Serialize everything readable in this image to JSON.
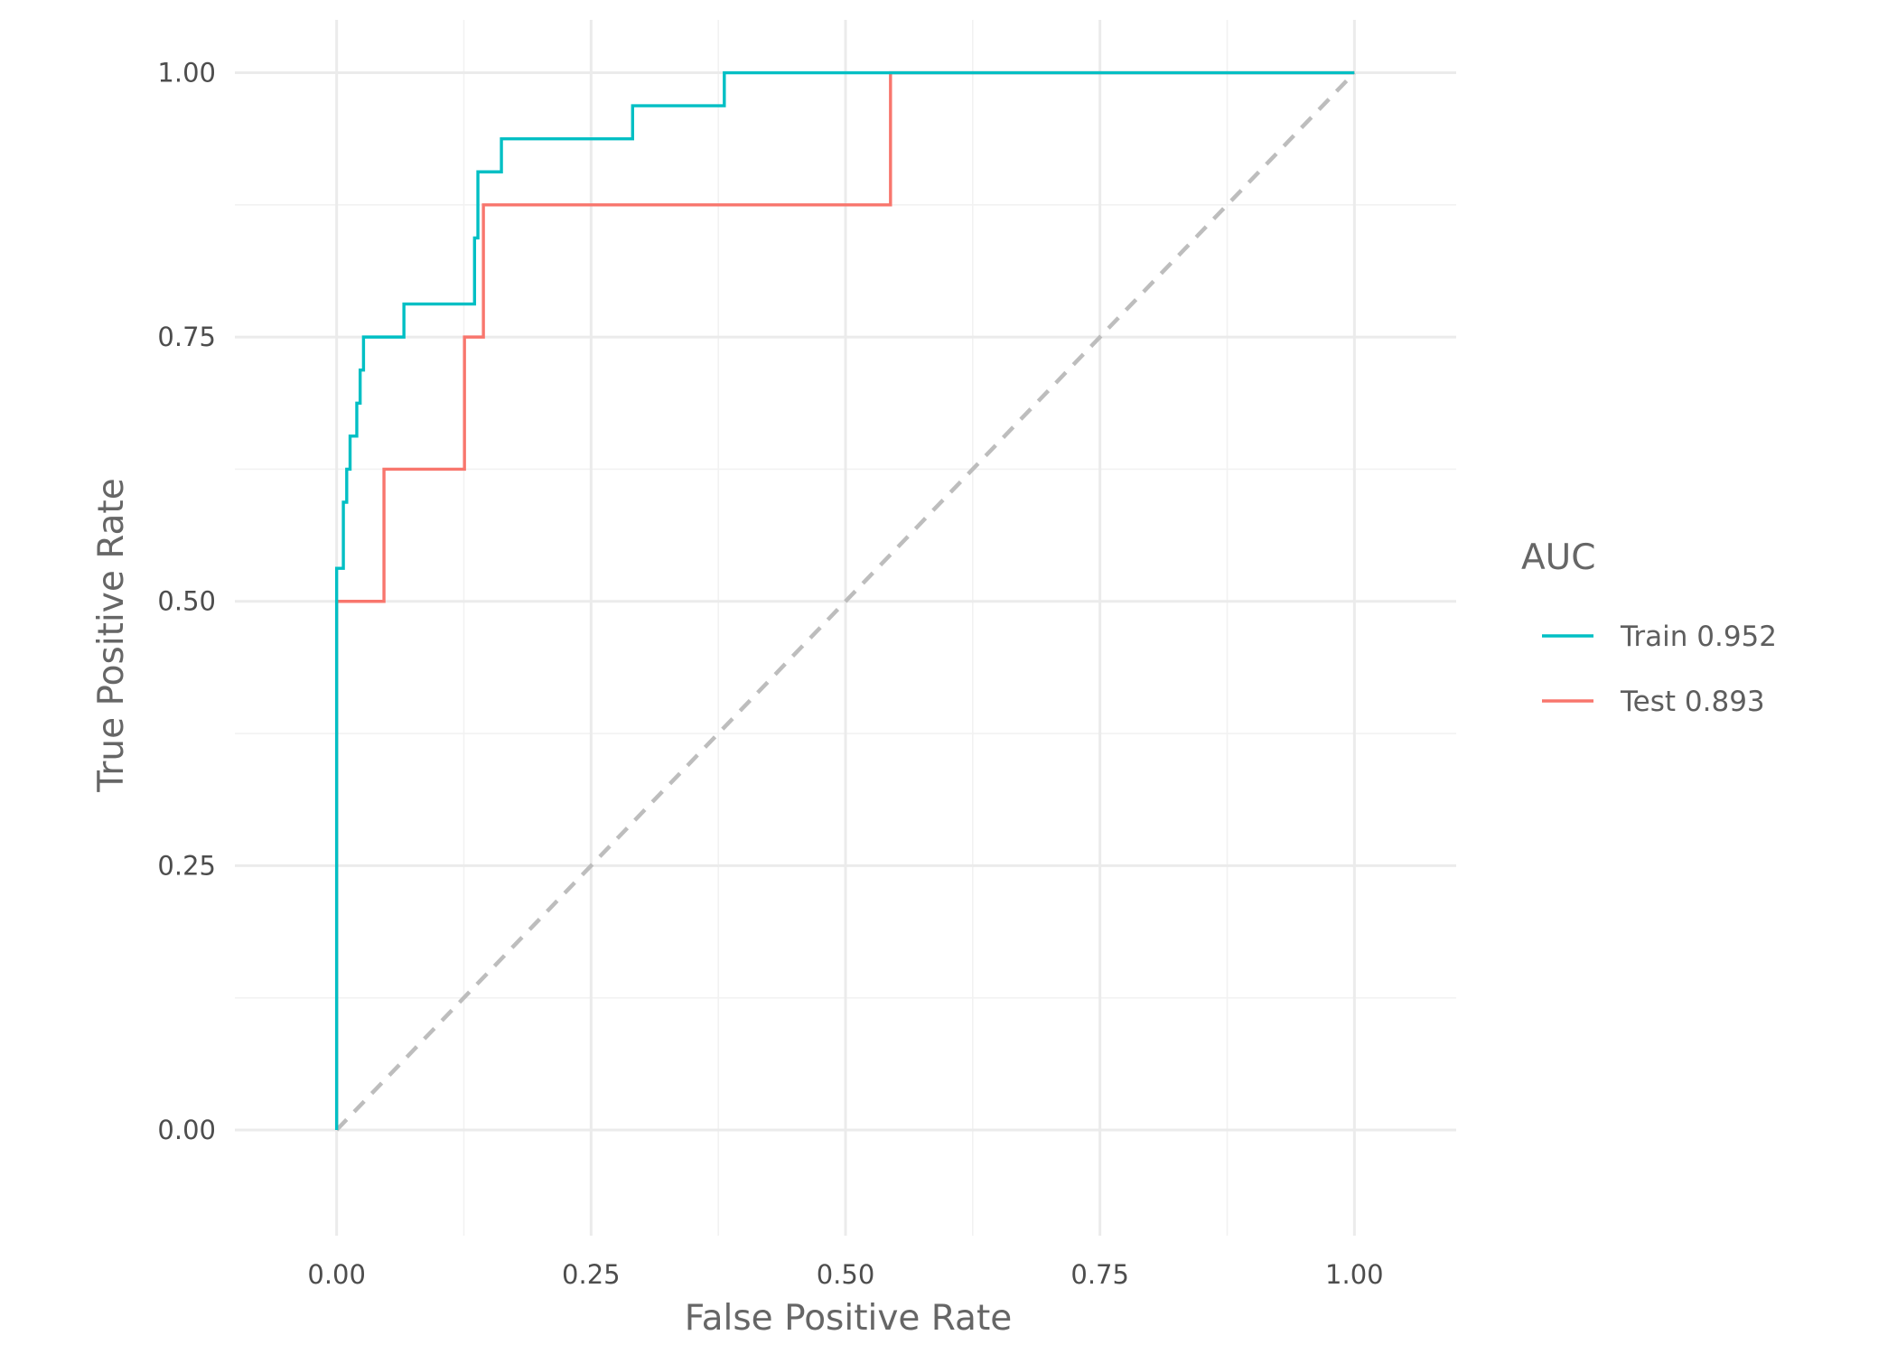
{
  "chart_data": {
    "type": "line",
    "title": "",
    "xlabel": "False Positive Rate",
    "ylabel": "True Positive Rate",
    "xlim": [
      -0.1,
      1.1
    ],
    "ylim": [
      -0.1,
      1.05
    ],
    "x_ticks": [
      0,
      0.25,
      0.5,
      0.75,
      1
    ],
    "x_tick_labels": [
      "0.00",
      "0.25",
      "0.50",
      "0.75",
      "1.00"
    ],
    "y_ticks": [
      0,
      0.25,
      0.5,
      0.75,
      1
    ],
    "y_tick_labels": [
      "0.00",
      "0.25",
      "0.50",
      "0.75",
      "1.00"
    ],
    "grid": true,
    "legend": {
      "title": "AUC",
      "position": "right"
    },
    "reference_line": {
      "x": [
        0,
        1
      ],
      "y": [
        0,
        1
      ],
      "style": "dashed",
      "color": "#bdbdbd"
    },
    "series": [
      {
        "name": "Train 0.952",
        "color": "#00bfc4",
        "points": [
          [
            0,
            0
          ],
          [
            0,
            0.53125
          ],
          [
            0.0066,
            0.53125
          ],
          [
            0.0066,
            0.59375
          ],
          [
            0.0099,
            0.59375
          ],
          [
            0.0099,
            0.625
          ],
          [
            0.0132,
            0.625
          ],
          [
            0.0132,
            0.65625
          ],
          [
            0.0198,
            0.65625
          ],
          [
            0.0198,
            0.6875
          ],
          [
            0.0231,
            0.6875
          ],
          [
            0.0231,
            0.71875
          ],
          [
            0.0264,
            0.71875
          ],
          [
            0.0264,
            0.75
          ],
          [
            0.0661,
            0.75
          ],
          [
            0.0661,
            0.78125
          ],
          [
            0.1355,
            0.78125
          ],
          [
            0.1355,
            0.84375
          ],
          [
            0.1388,
            0.84375
          ],
          [
            0.1388,
            0.875
          ],
          [
            0.1388,
            0.90625
          ],
          [
            0.1619,
            0.90625
          ],
          [
            0.1619,
            0.9375
          ],
          [
            0.2908,
            0.9375
          ],
          [
            0.2908,
            0.96875
          ],
          [
            0.3809,
            0.96875
          ],
          [
            0.3809,
            1
          ],
          [
            1,
            1
          ]
        ]
      },
      {
        "name": "Test 0.893",
        "color": "#f8766d",
        "points": [
          [
            0,
            0
          ],
          [
            0,
            0.5
          ],
          [
            0.0465,
            0.5
          ],
          [
            0.0465,
            0.625
          ],
          [
            0.1256,
            0.625
          ],
          [
            0.1256,
            0.75
          ],
          [
            0.1442,
            0.75
          ],
          [
            0.1442,
            0.875
          ],
          [
            0.5442,
            0.875
          ],
          [
            0.5442,
            1
          ],
          [
            1,
            1
          ]
        ]
      }
    ]
  }
}
